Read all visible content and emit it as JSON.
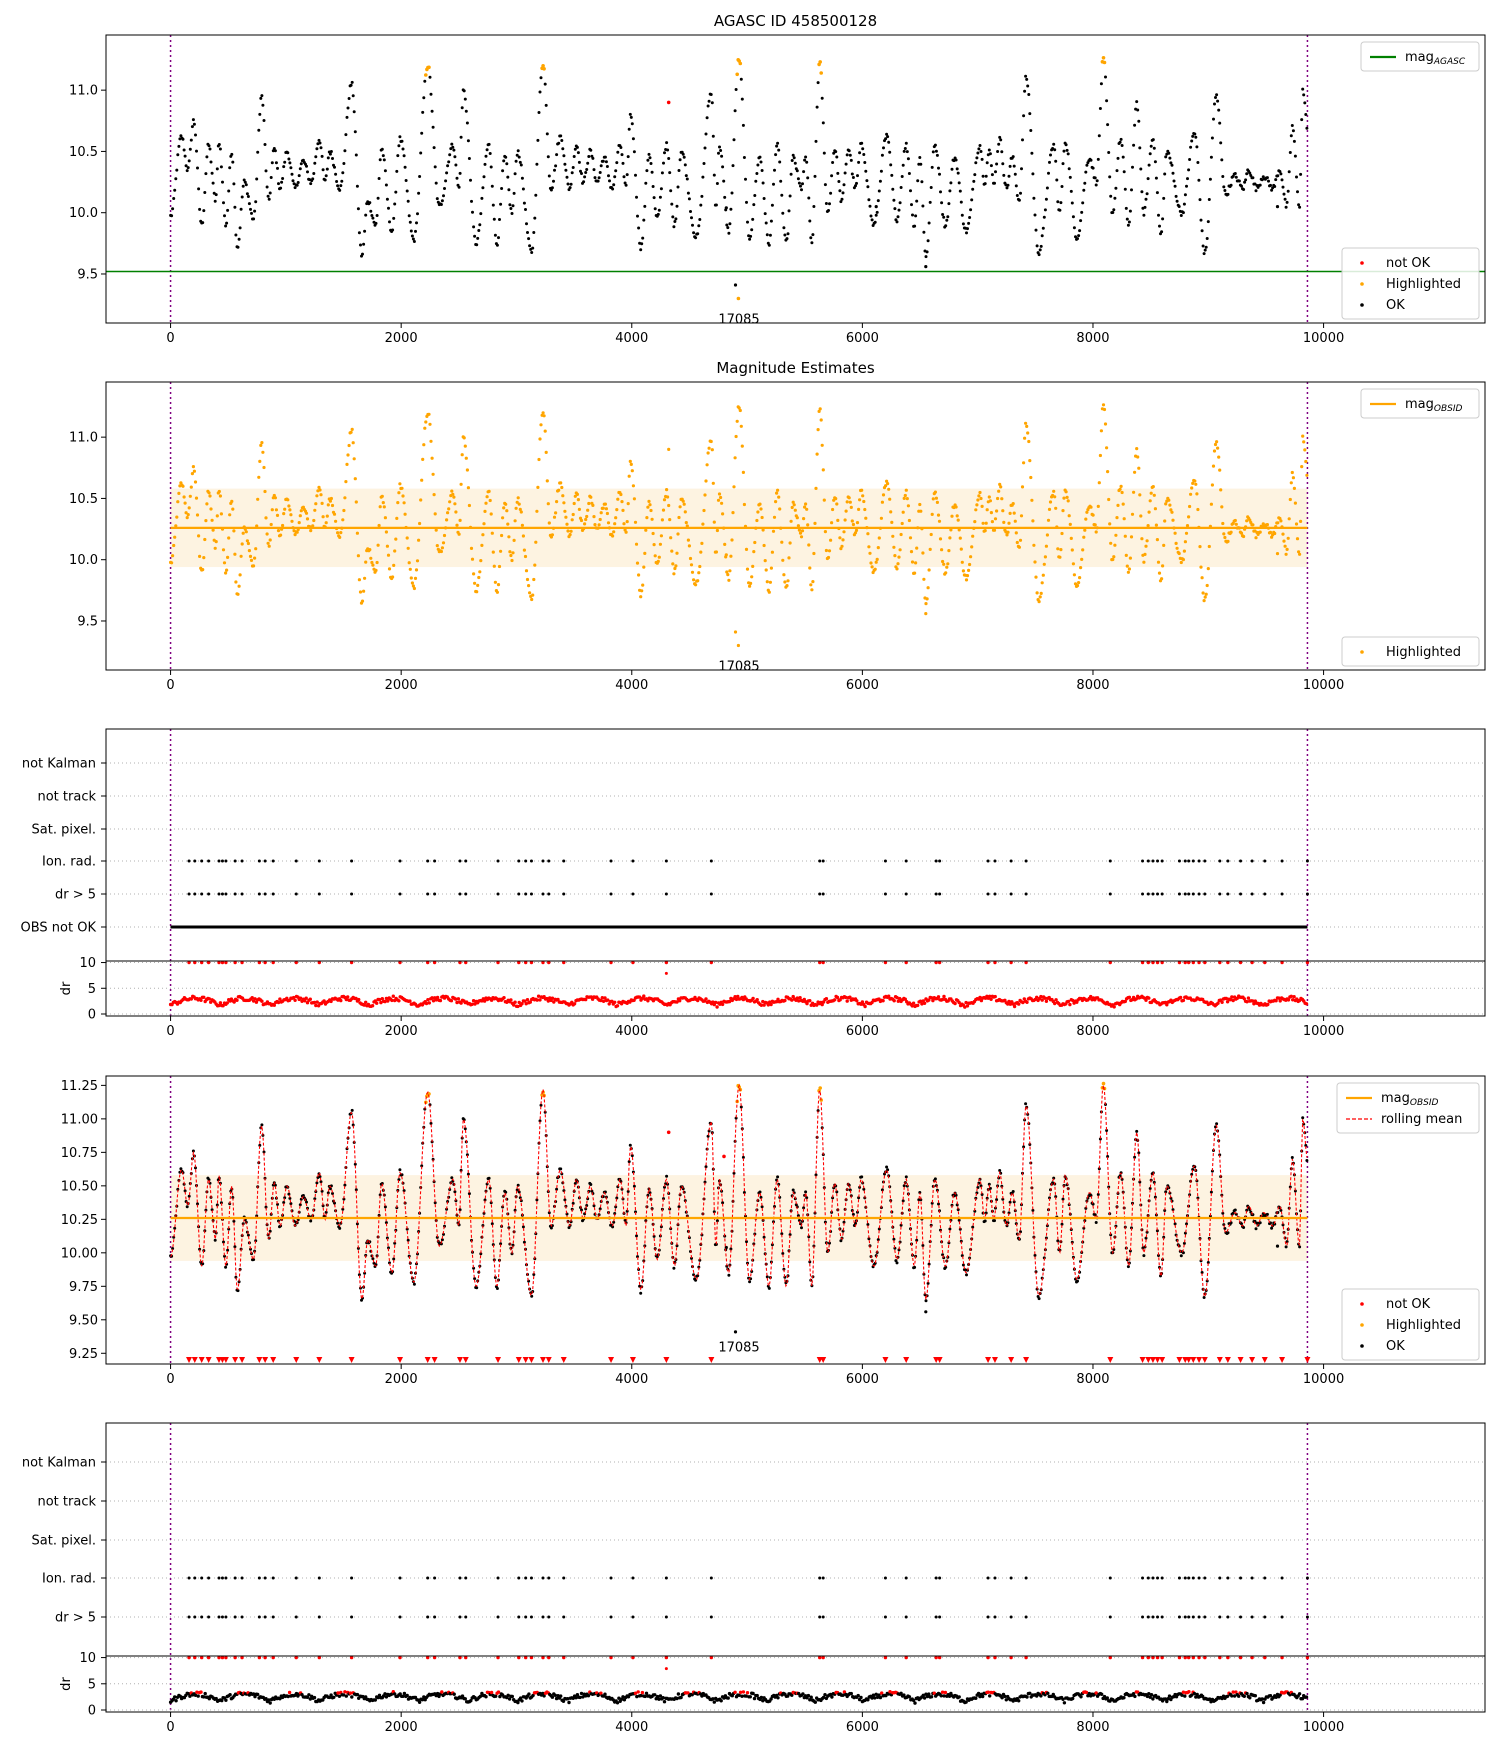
{
  "chart_data": [
    {
      "type": "scatter",
      "title": "AGASC ID 458500128",
      "xlim": [
        -560,
        11400
      ],
      "ylim": [
        9.1,
        11.45
      ],
      "xticks": [
        "0",
        "2000",
        "4000",
        "6000",
        "8000",
        "10000"
      ],
      "yticks": [
        "9.5",
        "10.0",
        "10.5",
        "11.0"
      ],
      "vlines": [
        0,
        9860
      ],
      "mag_agasc": 9.52,
      "annotation": {
        "text": "17085",
        "x": 4930,
        "y": 9.2
      },
      "legend_upper": [
        {
          "label": "mag",
          "sub": "AGASC",
          "color": "#008000"
        }
      ],
      "legend_lower": [
        {
          "label": "not OK",
          "color": "#ff0000"
        },
        {
          "label": "Highlighted",
          "color": "#ffa500"
        },
        {
          "label": "OK",
          "color": "#000000"
        }
      ],
      "series_note": "light-curve model: oscillating magnitude 9.65–11.3 over x 0–9860, ~30 cycles; highlighted (orange) above 11.12; isolated points at x=4320 y=10.9 (not OK), x=4900 y=9.41, x=4925 y=9.3, x=6550 y=9.56"
    },
    {
      "type": "scatter",
      "title": "Magnitude Estimates",
      "xlim": [
        -560,
        11400
      ],
      "ylim": [
        9.1,
        11.45
      ],
      "xticks": [
        "0",
        "2000",
        "4000",
        "6000",
        "8000",
        "10000"
      ],
      "yticks": [
        "9.5",
        "10.0",
        "10.5",
        "11.0"
      ],
      "vlines": [
        0,
        9860
      ],
      "mag_obsid": 10.26,
      "band": [
        9.94,
        10.58
      ],
      "annotation": {
        "text": "17085",
        "x": 4930,
        "y": 9.2
      },
      "legend_upper": [
        {
          "label": "mag",
          "sub": "OBSID",
          "color": "#ffa500"
        }
      ],
      "legend_lower": [
        {
          "label": "Highlighted",
          "color": "#ffa500"
        }
      ]
    },
    {
      "type": "scatter",
      "title": "",
      "xlim": [
        -560,
        11400
      ],
      "xticks": [
        "0",
        "2000",
        "4000",
        "6000",
        "8000",
        "10000"
      ],
      "flag_rows": [
        "not Kalman",
        "not track",
        "Sat. pixel.",
        "Ion. rad.",
        "dr > 5",
        "OBS not OK"
      ],
      "ylabel_dr": "dr",
      "dr_yticks": [
        "0",
        "5",
        "10"
      ],
      "vlines": [
        0,
        9860
      ]
    },
    {
      "type": "scatter",
      "title": "",
      "xlim": [
        -560,
        11400
      ],
      "ylim": [
        9.17,
        11.32
      ],
      "xticks": [
        "0",
        "2000",
        "4000",
        "6000",
        "8000",
        "10000"
      ],
      "yticks": [
        "9.25",
        "9.50",
        "9.75",
        "10.00",
        "10.25",
        "10.50",
        "10.75",
        "11.00",
        "11.25"
      ],
      "vlines": [
        0,
        9860
      ],
      "mag_obsid": 10.26,
      "band": [
        9.94,
        10.58
      ],
      "annotation": {
        "text": "17085",
        "x": 4930,
        "y": 9.36
      },
      "legend_upper": [
        {
          "label": "mag",
          "sub": "OBSID",
          "color": "#ffa500"
        },
        {
          "label": "rolling mean",
          "sub": "",
          "color": "#ff0000"
        }
      ],
      "legend_lower": [
        {
          "label": "not OK",
          "color": "#ff0000"
        },
        {
          "label": "Highlighted",
          "color": "#ffa500"
        },
        {
          "label": "OK",
          "color": "#000000"
        }
      ]
    },
    {
      "type": "scatter",
      "title": "",
      "xlim": [
        -560,
        11400
      ],
      "xticks": [
        "0",
        "2000",
        "4000",
        "6000",
        "8000",
        "10000"
      ],
      "flag_rows": [
        "not Kalman",
        "not track",
        "Sat. pixel.",
        "Ion. rad.",
        "dr > 5"
      ],
      "ylabel_dr": "dr",
      "dr_yticks": [
        "0",
        "5",
        "10"
      ],
      "vlines": [
        0,
        9860
      ]
    }
  ],
  "colors": {
    "ok": "#000000",
    "not_ok": "#ff0000",
    "highlighted": "#ffa500",
    "agasc": "#008000",
    "vline": "#800080",
    "band": "#fdf3e1",
    "grid": "#b0b0b0"
  }
}
